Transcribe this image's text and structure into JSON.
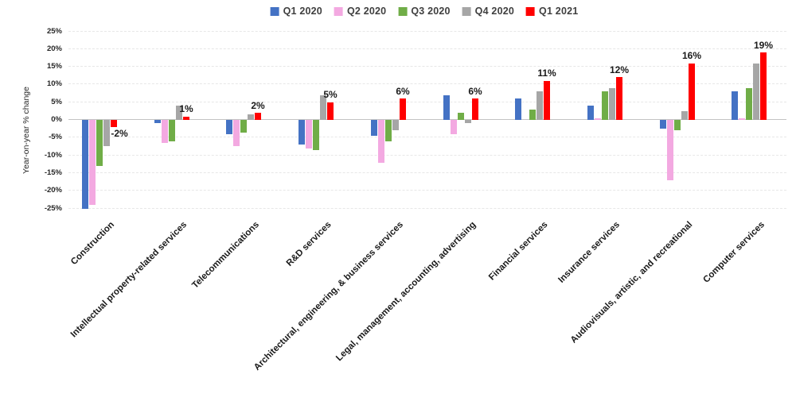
{
  "chart_data": {
    "type": "bar",
    "title": "",
    "ylabel": "Year-on-year % change",
    "xlabel": "",
    "ylim": [
      -25,
      25
    ],
    "ytick_step": 5,
    "yticks": [
      "25%",
      "20%",
      "15%",
      "10%",
      "5%",
      "0%",
      "-5%",
      "-10%",
      "-15%",
      "-20%",
      "-25%"
    ],
    "grid": true,
    "legend_position": "top",
    "categories": [
      "Construction",
      "Intellectual property-related services",
      "Telecommunications",
      "R&D services",
      "Architectural, engineering, & business services",
      "Legal, management, accounting, advertising",
      "Financial services",
      "Insurance services",
      "Audiovisuals, artistic, and recreational",
      "Computer services"
    ],
    "series": [
      {
        "name": "Q1 2020",
        "color": "#4472C4",
        "values": [
          -25,
          -1,
          -4,
          -7,
          -4.5,
          7,
          6,
          4,
          -2.5,
          8
        ]
      },
      {
        "name": "Q2 2020",
        "color": "#F3A9E1",
        "values": [
          -24,
          -6.5,
          -7.5,
          -8,
          -12,
          -4,
          0,
          0.5,
          -17,
          0.5
        ]
      },
      {
        "name": "Q3 2020",
        "color": "#70AD47",
        "values": [
          -13,
          -6,
          -3.5,
          -8.5,
          -6,
          2,
          3,
          8,
          -3,
          9
        ]
      },
      {
        "name": "Q4 2020",
        "color": "#A6A6A6",
        "values": [
          -7.5,
          4,
          1.5,
          7,
          -3,
          -1,
          8,
          9,
          2.5,
          16
        ]
      },
      {
        "name": "Q1 2021",
        "color": "#FF0000",
        "values": [
          -2,
          1,
          2,
          5,
          6,
          6,
          11,
          12,
          16,
          19
        ]
      }
    ],
    "data_labels": [
      "-2%",
      "1%",
      "2%",
      "5%",
      "6%",
      "6%",
      "11%",
      "12%",
      "16%",
      "19%"
    ],
    "data_label_series": "Q1 2021"
  }
}
